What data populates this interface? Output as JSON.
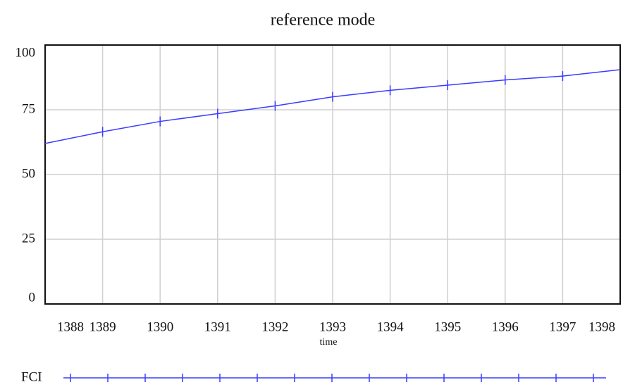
{
  "chart_data": {
    "type": "line",
    "title": "reference mode",
    "x_label": "time",
    "x": [
      1388,
      1389,
      1390,
      1391,
      1392,
      1393,
      1394,
      1395,
      1396,
      1397,
      1398
    ],
    "series": [
      {
        "name": "FCI",
        "color": "#3b3bff",
        "values": [
          62,
          66.5,
          70.5,
          73.5,
          76.5,
          80,
          82.5,
          84.5,
          86.5,
          88,
          90.5
        ]
      }
    ],
    "xlim": [
      1388,
      1398
    ],
    "xticks": [
      1388,
      1389,
      1390,
      1391,
      1392,
      1393,
      1394,
      1395,
      1396,
      1397,
      1398
    ],
    "ylim": [
      0,
      100
    ],
    "yticks": [
      0,
      25,
      50,
      75,
      100
    ],
    "grid": true
  }
}
